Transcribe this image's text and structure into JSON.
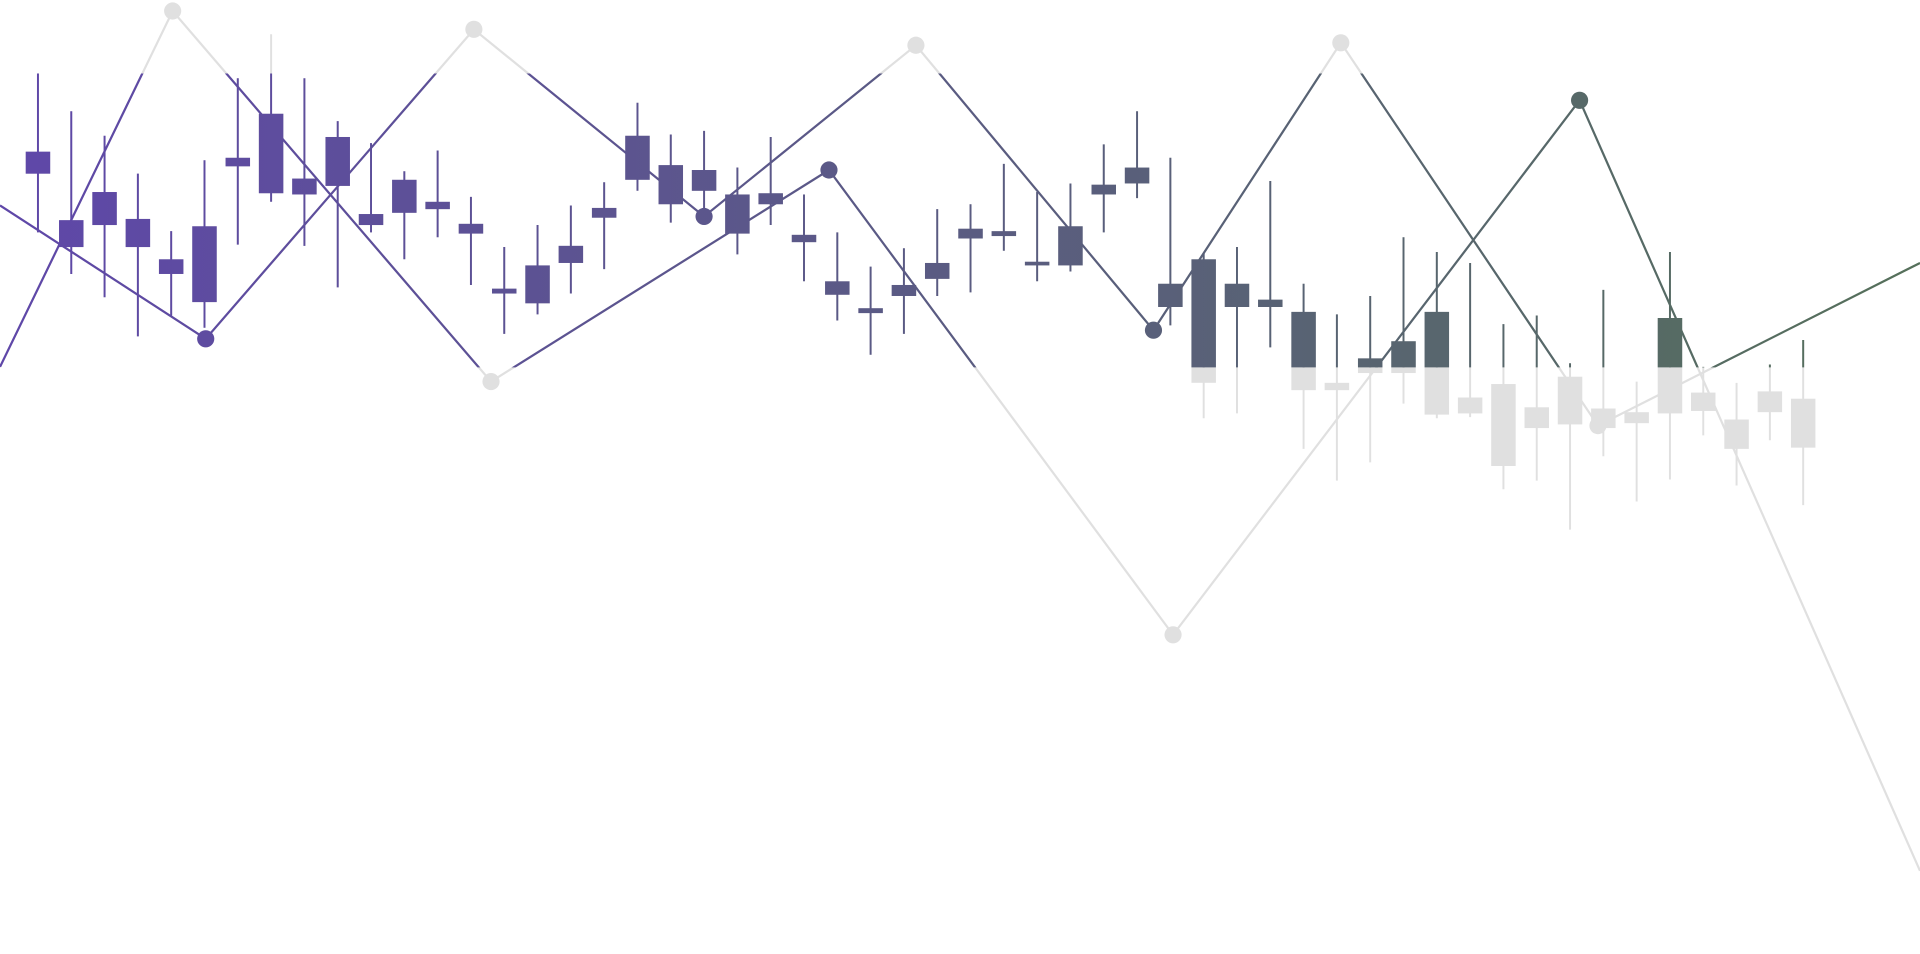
{
  "chart_data": [
    {
      "type": "candlestick",
      "colors": [
        "#5f47a9",
        "#55705a"
      ],
      "muted_color": "#e0e0e0",
      "ylim": [
        0,
        780
      ],
      "open": [
        638,
        578,
        596,
        578,
        556,
        533,
        644,
        622,
        621,
        628,
        596,
        606,
        609,
        589,
        540,
        532,
        565,
        602,
        633,
        613,
        624,
        589,
        613,
        582,
        539,
        524,
        538,
        552,
        585,
        587,
        563,
        563,
        621,
        630,
        529,
        467,
        529,
        529,
        461,
        461,
        475,
        475,
        441,
        442,
        399,
        430,
        433,
        430,
        434,
        442,
        444,
        413,
        443,
        414
      ],
      "close": [
        656,
        600,
        623,
        601,
        568,
        595,
        651,
        687,
        634,
        668,
        605,
        633,
        615,
        597,
        544,
        563,
        579,
        610,
        669,
        645,
        641,
        621,
        622,
        588,
        550,
        528,
        547,
        565,
        593,
        591,
        566,
        595,
        629,
        643,
        548,
        568,
        548,
        535,
        525,
        467,
        487,
        501,
        525,
        455,
        466,
        447,
        472,
        446,
        443,
        520,
        459,
        437,
        460,
        454
      ],
      "high": [
        720,
        689,
        669,
        638,
        591,
        649,
        716,
        752,
        716,
        681,
        663,
        640,
        657,
        619,
        578,
        596,
        612,
        631,
        696,
        670,
        673,
        643,
        668,
        621,
        590,
        562,
        577,
        609,
        613,
        646,
        623,
        630,
        662,
        689,
        651,
        573,
        578,
        632,
        548,
        523,
        538,
        586,
        574,
        565,
        515,
        522,
        483,
        543,
        468,
        574,
        480,
        467,
        482,
        502
      ],
      "low": [
        590,
        556,
        537,
        505,
        522,
        512,
        580,
        615,
        579,
        545,
        590,
        568,
        586,
        547,
        507,
        523,
        540,
        560,
        624,
        598,
        608,
        572,
        596,
        550,
        518,
        490,
        507,
        538,
        541,
        575,
        550,
        558,
        590,
        618,
        514,
        438,
        442,
        496,
        413,
        387,
        402,
        450,
        438,
        439,
        380,
        387,
        347,
        407,
        370,
        388,
        424,
        383,
        420,
        367
      ]
    },
    {
      "type": "line",
      "xlim": [
        0,
        1568
      ],
      "ylim": [
        0,
        780
      ],
      "series": [
        {
          "x": [
            0,
            168,
            387,
            575,
            748,
            942,
            1095,
            1305,
            1568
          ],
          "values": [
            612,
            503,
            756,
            603,
            743,
            510,
            745,
            432,
            565
          ]
        },
        {
          "x": [
            0,
            141,
            401,
            677,
            958,
            1290,
            1568
          ],
          "values": [
            480,
            771,
            468,
            641,
            261,
            698,
            68
          ]
        }
      ]
    }
  ]
}
